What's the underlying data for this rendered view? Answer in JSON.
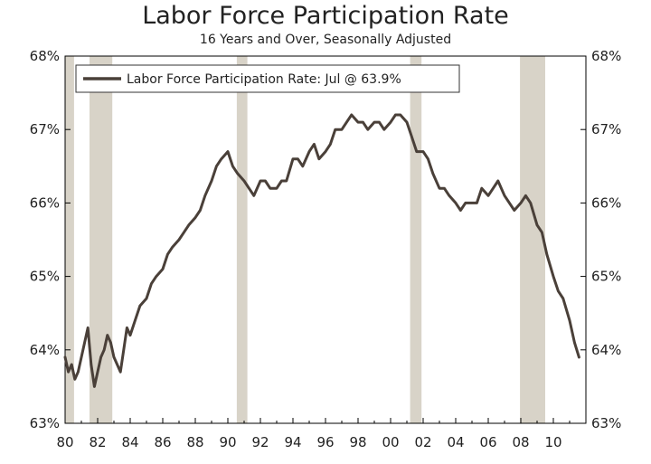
{
  "chart_data": {
    "type": "line",
    "title": "Labor Force Participation Rate",
    "subtitle": "16 Years and Over, Seasonally Adjusted",
    "xlabel": "",
    "ylabel": "",
    "xlim": [
      1980,
      2012
    ],
    "ylim": [
      63,
      68
    ],
    "y_ticks": [
      63,
      64,
      65,
      66,
      67,
      68
    ],
    "y_tick_labels": [
      "63%",
      "64%",
      "65%",
      "66%",
      "67%",
      "68%"
    ],
    "x_ticks": [
      1980,
      1982,
      1984,
      1986,
      1988,
      1990,
      1992,
      1994,
      1996,
      1998,
      2000,
      2002,
      2004,
      2006,
      2008,
      2010
    ],
    "x_tick_labels": [
      "80",
      "82",
      "84",
      "86",
      "88",
      "90",
      "92",
      "94",
      "96",
      "98",
      "00",
      "02",
      "04",
      "06",
      "08",
      "10"
    ],
    "grid": false,
    "legend_position": "top-left",
    "recessions": [
      [
        1980.0,
        1980.55
      ],
      [
        1981.5,
        1982.9
      ],
      [
        1990.55,
        1991.2
      ],
      [
        2001.2,
        2001.9
      ],
      [
        2007.95,
        2009.5
      ]
    ],
    "series": [
      {
        "name": "Labor Force Participation Rate: Jul @ 63.9%",
        "color": "#4a4039",
        "x": [
          1980.0,
          1980.2,
          1980.4,
          1980.6,
          1980.8,
          1981.0,
          1981.2,
          1981.4,
          1981.6,
          1981.8,
          1982.0,
          1982.2,
          1982.4,
          1982.6,
          1982.8,
          1983.0,
          1983.2,
          1983.4,
          1983.6,
          1983.8,
          1984.0,
          1984.3,
          1984.6,
          1985.0,
          1985.3,
          1985.6,
          1986.0,
          1986.3,
          1986.6,
          1987.0,
          1987.3,
          1987.6,
          1988.0,
          1988.3,
          1988.6,
          1989.0,
          1989.3,
          1989.6,
          1990.0,
          1990.3,
          1990.6,
          1991.0,
          1991.3,
          1991.6,
          1992.0,
          1992.3,
          1992.6,
          1993.0,
          1993.3,
          1993.6,
          1994.0,
          1994.3,
          1994.6,
          1995.0,
          1995.3,
          1995.6,
          1996.0,
          1996.3,
          1996.6,
          1997.0,
          1997.3,
          1997.6,
          1998.0,
          1998.3,
          1998.6,
          1999.0,
          1999.3,
          1999.6,
          2000.0,
          2000.3,
          2000.6,
          2001.0,
          2001.3,
          2001.6,
          2002.0,
          2002.3,
          2002.6,
          2003.0,
          2003.3,
          2003.6,
          2004.0,
          2004.3,
          2004.6,
          2005.0,
          2005.3,
          2005.6,
          2006.0,
          2006.3,
          2006.6,
          2007.0,
          2007.3,
          2007.6,
          2008.0,
          2008.3,
          2008.6,
          2009.0,
          2009.3,
          2009.6,
          2010.0,
          2010.3,
          2010.6,
          2011.0,
          2011.3,
          2011.58
        ],
        "values": [
          63.9,
          63.7,
          63.8,
          63.6,
          63.7,
          63.9,
          64.1,
          64.3,
          63.8,
          63.5,
          63.7,
          63.9,
          64.0,
          64.2,
          64.1,
          63.9,
          63.8,
          63.7,
          64.0,
          64.3,
          64.2,
          64.4,
          64.6,
          64.7,
          64.9,
          65.0,
          65.1,
          65.3,
          65.4,
          65.5,
          65.6,
          65.7,
          65.8,
          65.9,
          66.1,
          66.3,
          66.5,
          66.6,
          66.7,
          66.5,
          66.4,
          66.3,
          66.2,
          66.1,
          66.3,
          66.3,
          66.2,
          66.2,
          66.3,
          66.3,
          66.6,
          66.6,
          66.5,
          66.7,
          66.8,
          66.6,
          66.7,
          66.8,
          67.0,
          67.0,
          67.1,
          67.2,
          67.1,
          67.1,
          67.0,
          67.1,
          67.1,
          67.0,
          67.1,
          67.2,
          67.2,
          67.1,
          66.9,
          66.7,
          66.7,
          66.6,
          66.4,
          66.2,
          66.2,
          66.1,
          66.0,
          65.9,
          66.0,
          66.0,
          66.0,
          66.2,
          66.1,
          66.2,
          66.3,
          66.1,
          66.0,
          65.9,
          66.0,
          66.1,
          66.0,
          65.7,
          65.6,
          65.3,
          65.0,
          64.8,
          64.7,
          64.4,
          64.1,
          63.9
        ]
      }
    ]
  },
  "legend": {
    "label": "Labor Force Participation Rate: Jul @ 63.9%"
  },
  "colors": {
    "recession_band": "#d8d3c8",
    "line": "#4a4039",
    "axis": "#000000"
  }
}
